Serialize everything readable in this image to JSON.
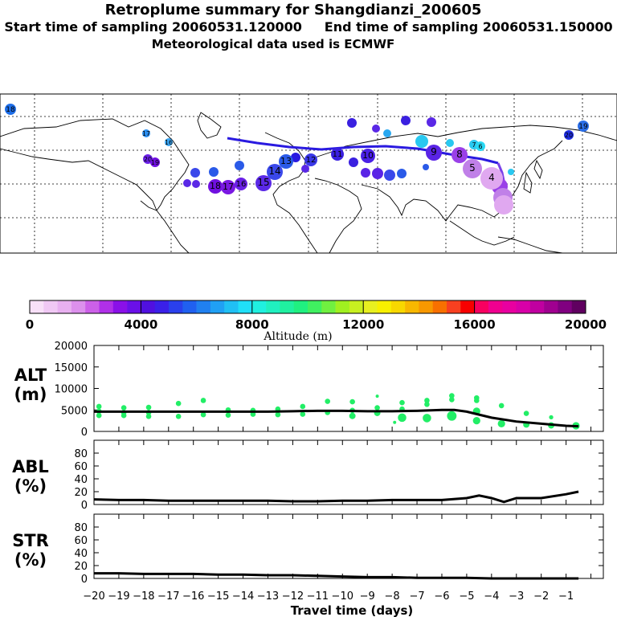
{
  "header": {
    "title": "Retroplume summary for Shangdianzi_200605",
    "sampling_start": "Start time of sampling 20060531.120000",
    "sampling_end": "End time of sampling 20060531.150000",
    "met_data": "Meteorological data used is ECMWF"
  },
  "colors": {
    "point_green": "#22ee66",
    "line": "#000000",
    "track_blue": "#2a1ae0"
  },
  "colorbar": {
    "title": "Altitude (m)",
    "tick_labels": [
      "0",
      "4000",
      "8000",
      "12000",
      "16000",
      "20000"
    ],
    "min": 0,
    "max": 20000
  },
  "map": {
    "labels": [
      {
        "text": "18",
        "color": "#1e6ee8"
      },
      {
        "text": "17",
        "color": "#2a8ef0"
      },
      {
        "text": "16",
        "color": "#3aa6f4"
      },
      {
        "text": "20",
        "color": "#6a20e6"
      },
      {
        "text": "19",
        "color": "#7010e0"
      },
      {
        "text": "18",
        "color": "#7010e0"
      },
      {
        "text": "17",
        "color": "#7a18e2"
      },
      {
        "text": "16",
        "color": "#6a20e6"
      },
      {
        "text": "15",
        "color": "#5a28e6"
      },
      {
        "text": "14",
        "color": "#3a48ea"
      },
      {
        "text": "13",
        "color": "#2a5ae8"
      },
      {
        "text": "12",
        "color": "#3a38e8"
      },
      {
        "text": "11",
        "color": "#3a20e0"
      },
      {
        "text": "10",
        "color": "#4a20e6"
      },
      {
        "text": "9",
        "color": "#5a24e6"
      },
      {
        "text": "8",
        "color": "#9a40e8"
      },
      {
        "text": "7",
        "color": "#29c8f0"
      },
      {
        "text": "6",
        "color": "#29d8f4"
      },
      {
        "text": "5",
        "color": "#c080e8"
      },
      {
        "text": "4",
        "color": "#e0a8f0"
      },
      {
        "text": "19",
        "color": "#2a6ee8"
      },
      {
        "text": "20",
        "color": "#1e2ee0"
      }
    ]
  },
  "chart_data": [
    {
      "type": "scatter",
      "name": "ALT",
      "ylabel": "ALT\n(m)",
      "ylabel_lines": [
        "ALT",
        "(m)"
      ],
      "ylim": [
        0,
        20000
      ],
      "yticks": [
        0,
        5000,
        10000,
        15000,
        20000
      ],
      "ytick_labels": [
        "0",
        "5000",
        "10000",
        "15000",
        "20000"
      ],
      "mean_line": {
        "x": [
          -20,
          -19,
          -18,
          -17,
          -16,
          -15,
          -14,
          -13,
          -12,
          -11,
          -10,
          -9,
          -8,
          -7,
          -6,
          -5.5,
          -5,
          -4,
          -3,
          -2,
          -1,
          -0.5
        ],
        "y": [
          4600,
          4600,
          4600,
          4600,
          4600,
          4600,
          4600,
          4600,
          4700,
          4800,
          4800,
          4700,
          4700,
          4800,
          5000,
          5000,
          4600,
          3200,
          2300,
          1800,
          1300,
          1200
        ]
      },
      "points": [
        {
          "x": -19.8,
          "y": 5800,
          "r": 1
        },
        {
          "x": -19.8,
          "y": 4700,
          "r": 1
        },
        {
          "x": -19.8,
          "y": 3700,
          "r": 1
        },
        {
          "x": -18.8,
          "y": 5500,
          "r": 1
        },
        {
          "x": -18.8,
          "y": 4400,
          "r": 1
        },
        {
          "x": -18.8,
          "y": 3700,
          "r": 1
        },
        {
          "x": -17.8,
          "y": 5600,
          "r": 1
        },
        {
          "x": -17.8,
          "y": 4400,
          "r": 1
        },
        {
          "x": -17.8,
          "y": 3500,
          "r": 1
        },
        {
          "x": -16.6,
          "y": 6500,
          "r": 1
        },
        {
          "x": -16.6,
          "y": 3500,
          "r": 1
        },
        {
          "x": -15.6,
          "y": 7200,
          "r": 1
        },
        {
          "x": -15.6,
          "y": 3900,
          "r": 1
        },
        {
          "x": -14.6,
          "y": 5000,
          "r": 1
        },
        {
          "x": -14.6,
          "y": 3800,
          "r": 1
        },
        {
          "x": -13.6,
          "y": 4900,
          "r": 1
        },
        {
          "x": -13.6,
          "y": 4000,
          "r": 1
        },
        {
          "x": -12.6,
          "y": 5200,
          "r": 1
        },
        {
          "x": -12.6,
          "y": 3900,
          "r": 1
        },
        {
          "x": -11.6,
          "y": 5800,
          "r": 1
        },
        {
          "x": -11.6,
          "y": 4000,
          "r": 1
        },
        {
          "x": -10.6,
          "y": 7000,
          "r": 1
        },
        {
          "x": -10.6,
          "y": 4400,
          "r": 1
        },
        {
          "x": -9.6,
          "y": 6900,
          "r": 1
        },
        {
          "x": -9.6,
          "y": 4900,
          "r": 1
        },
        {
          "x": -9.6,
          "y": 3600,
          "r": 1.2
        },
        {
          "x": -8.6,
          "y": 8200,
          "r": 0.6
        },
        {
          "x": -8.6,
          "y": 5500,
          "r": 1
        },
        {
          "x": -8.6,
          "y": 4300,
          "r": 1.2
        },
        {
          "x": -7.6,
          "y": 6700,
          "r": 1
        },
        {
          "x": -7.6,
          "y": 5200,
          "r": 1
        },
        {
          "x": -7.6,
          "y": 3200,
          "r": 1.6
        },
        {
          "x": -7.9,
          "y": 2100,
          "r": 0.6
        },
        {
          "x": -6.6,
          "y": 7200,
          "r": 1
        },
        {
          "x": -6.6,
          "y": 6300,
          "r": 1
        },
        {
          "x": -6.6,
          "y": 3100,
          "r": 1.6
        },
        {
          "x": -5.6,
          "y": 8300,
          "r": 1
        },
        {
          "x": -5.6,
          "y": 7400,
          "r": 1
        },
        {
          "x": -5.6,
          "y": 3600,
          "r": 1.8
        },
        {
          "x": -4.6,
          "y": 7800,
          "r": 1
        },
        {
          "x": -4.6,
          "y": 7200,
          "r": 1
        },
        {
          "x": -4.6,
          "y": 4700,
          "r": 1.4
        },
        {
          "x": -4.6,
          "y": 2500,
          "r": 1.4
        },
        {
          "x": -3.6,
          "y": 6000,
          "r": 1
        },
        {
          "x": -3.6,
          "y": 1800,
          "r": 1.4
        },
        {
          "x": -2.6,
          "y": 4200,
          "r": 1
        },
        {
          "x": -2.6,
          "y": 1600,
          "r": 1.2
        },
        {
          "x": -1.6,
          "y": 3300,
          "r": 0.8
        },
        {
          "x": -1.6,
          "y": 1400,
          "r": 1.2
        },
        {
          "x": -0.6,
          "y": 1300,
          "r": 1.4
        }
      ]
    },
    {
      "type": "line",
      "name": "ABL",
      "ylabel": "ABL\n(%)",
      "ylabel_lines": [
        "ABL",
        "(%)"
      ],
      "ylim": [
        0,
        100
      ],
      "yticks": [
        0,
        20,
        40,
        60,
        80
      ],
      "ytick_labels": [
        "0",
        "20",
        "40",
        "60",
        "80"
      ],
      "x": [
        -20,
        -19,
        -18,
        -17,
        -16,
        -15,
        -14,
        -13,
        -12,
        -11,
        -10,
        -9,
        -8,
        -7,
        -6,
        -5,
        -4.5,
        -4,
        -3.5,
        -3,
        -2,
        -1,
        -0.5
      ],
      "y": [
        8,
        7,
        7,
        6,
        6,
        6,
        6,
        6,
        5,
        5,
        6,
        6,
        7,
        7,
        7,
        10,
        14,
        10,
        4,
        10,
        10,
        16,
        20
      ]
    },
    {
      "type": "line",
      "name": "STR",
      "ylabel": "STR\n(%)",
      "ylabel_lines": [
        "STR",
        "(%)"
      ],
      "ylim": [
        0,
        100
      ],
      "yticks": [
        0,
        20,
        40,
        60,
        80
      ],
      "ytick_labels": [
        "0",
        "20",
        "40",
        "60",
        "80"
      ],
      "xlabel": "Travel time (days)",
      "xticks": [
        -20,
        -19,
        -18,
        -17,
        -16,
        -15,
        -14,
        -13,
        -12,
        -11,
        -10,
        -9,
        -8,
        -7,
        -6,
        -5,
        -4,
        -3,
        -2,
        -1,
        0
      ],
      "xtick_labels": [
        "-20",
        "-19",
        "-18",
        "-17",
        "-16",
        "-15",
        "-14",
        "-13",
        "-12",
        "-11",
        "-10",
        "-9",
        "-8",
        "-7",
        "-6",
        "-5",
        "-4",
        "-3",
        "-2",
        "-1",
        ""
      ],
      "xlim": [
        -20,
        0.5
      ],
      "x": [
        -20,
        -19,
        -18,
        -17,
        -16,
        -15,
        -14,
        -13,
        -12,
        -11,
        -10,
        -9,
        -8,
        -7,
        -6,
        -5,
        -4,
        -3,
        -2,
        -1,
        -0.5
      ],
      "y": [
        8,
        8,
        7,
        7,
        7,
        6,
        6,
        5,
        5,
        4,
        3,
        2,
        2,
        1,
        1,
        1,
        0,
        0,
        0,
        0,
        0
      ]
    }
  ]
}
